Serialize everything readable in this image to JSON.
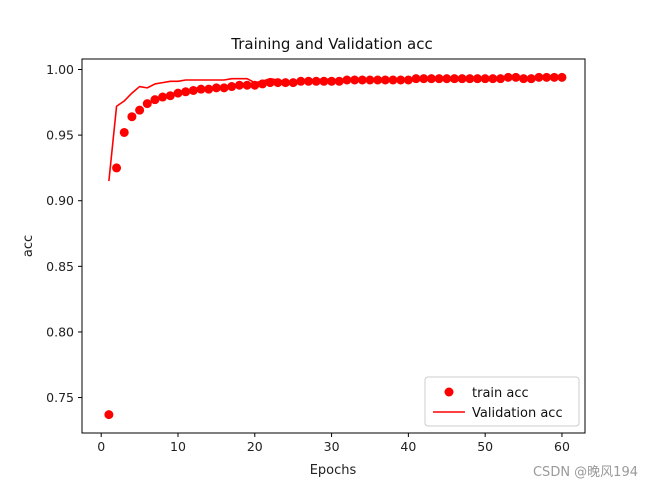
{
  "chart_data": {
    "type": "line",
    "title": "Training and Validation acc",
    "xlabel": "Epochs",
    "ylabel": "acc",
    "xlim": [
      -2.5,
      63
    ],
    "ylim": [
      0.723,
      1.008
    ],
    "xticks": [
      0,
      10,
      20,
      30,
      40,
      50,
      60
    ],
    "yticks": [
      0.75,
      0.8,
      0.85,
      0.9,
      0.95,
      1.0
    ],
    "ytick_labels": [
      "0.75",
      "0.80",
      "0.85",
      "0.90",
      "0.95",
      "1.00"
    ],
    "grid": false,
    "legend_position": "lower-right",
    "series": [
      {
        "name": "train acc",
        "style": "scatter",
        "color": "#ff0000",
        "x": [
          1,
          2,
          3,
          4,
          5,
          6,
          7,
          8,
          9,
          10,
          11,
          12,
          13,
          14,
          15,
          16,
          17,
          18,
          19,
          20,
          21,
          22,
          23,
          24,
          25,
          26,
          27,
          28,
          29,
          30,
          31,
          32,
          33,
          34,
          35,
          36,
          37,
          38,
          39,
          40,
          41,
          42,
          43,
          44,
          45,
          46,
          47,
          48,
          49,
          50,
          51,
          52,
          53,
          54,
          55,
          56,
          57,
          58,
          59,
          60
        ],
        "y": [
          0.737,
          0.925,
          0.952,
          0.964,
          0.969,
          0.974,
          0.977,
          0.979,
          0.98,
          0.982,
          0.983,
          0.984,
          0.985,
          0.985,
          0.986,
          0.986,
          0.987,
          0.988,
          0.988,
          0.988,
          0.989,
          0.99,
          0.99,
          0.99,
          0.99,
          0.991,
          0.991,
          0.991,
          0.991,
          0.991,
          0.991,
          0.992,
          0.992,
          0.992,
          0.992,
          0.992,
          0.992,
          0.992,
          0.992,
          0.992,
          0.993,
          0.993,
          0.993,
          0.993,
          0.993,
          0.993,
          0.993,
          0.993,
          0.993,
          0.993,
          0.993,
          0.993,
          0.994,
          0.994,
          0.993,
          0.993,
          0.994,
          0.994,
          0.994,
          0.994
        ]
      },
      {
        "name": "Validation acc",
        "style": "line",
        "color": "#ff0000",
        "x": [
          1,
          2,
          3,
          4,
          5,
          6,
          7,
          8,
          9,
          10,
          11,
          12,
          13,
          14,
          15,
          16,
          17,
          18,
          19,
          20,
          21,
          22,
          23,
          24,
          25,
          26,
          27,
          28,
          29,
          30,
          31,
          32,
          33,
          34,
          35,
          36,
          37,
          38,
          39,
          40,
          41,
          42,
          43,
          44,
          45,
          46,
          47,
          48,
          49,
          50,
          51,
          52,
          53,
          54,
          55,
          56,
          57,
          58,
          59,
          60
        ],
        "y": [
          0.915,
          0.972,
          0.976,
          0.982,
          0.987,
          0.986,
          0.989,
          0.99,
          0.991,
          0.991,
          0.992,
          0.992,
          0.992,
          0.992,
          0.992,
          0.992,
          0.993,
          0.993,
          0.993,
          0.99,
          0.991,
          0.993,
          0.992,
          0.991,
          0.991,
          0.992,
          0.991,
          0.992,
          0.992,
          0.993,
          0.991,
          0.993,
          0.991,
          0.993,
          0.992,
          0.993,
          0.993,
          0.992,
          0.993,
          0.992,
          0.993,
          0.993,
          0.993,
          0.994,
          0.993,
          0.993,
          0.994,
          0.993,
          0.993,
          0.993,
          0.994,
          0.993,
          0.994,
          0.994,
          0.993,
          0.994,
          0.994,
          0.993,
          0.994,
          0.994
        ]
      }
    ]
  },
  "watermark": "CSDN @晚风194"
}
